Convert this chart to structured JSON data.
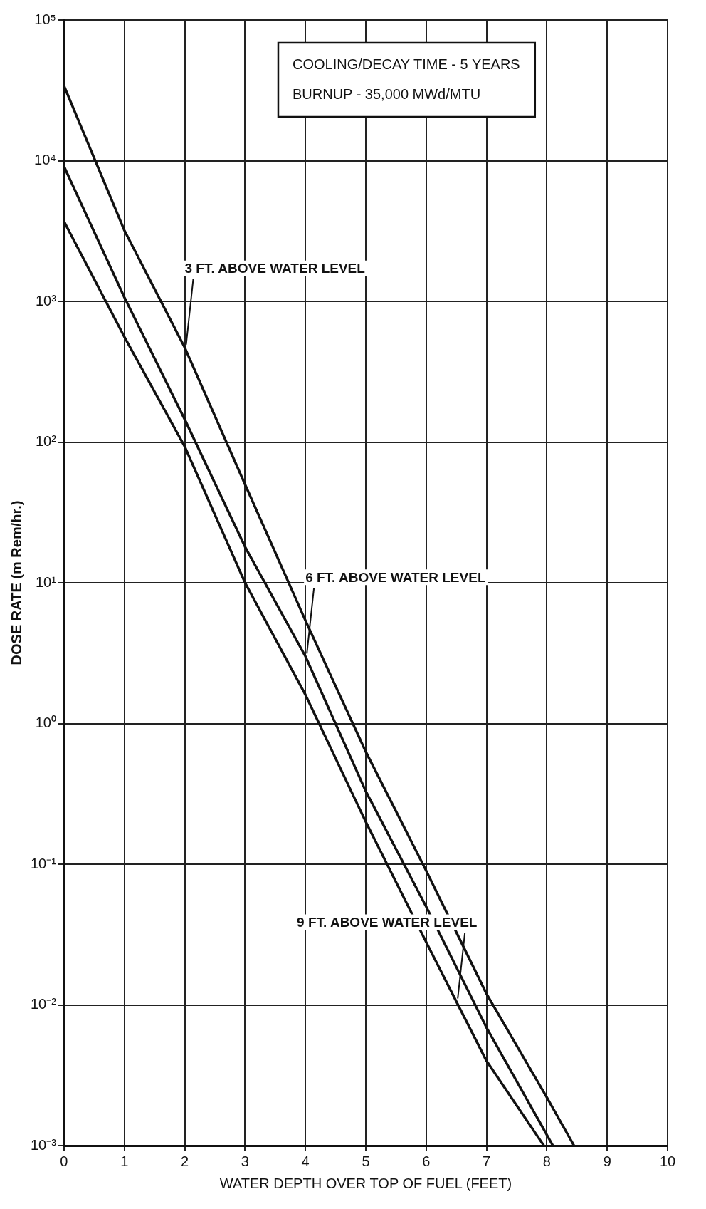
{
  "chart_data": {
    "type": "line",
    "xlabel": "WATER DEPTH OVER TOP OF FUEL (FEET)",
    "ylabel": "DOSE RATE (m Rem/hr.)",
    "log": "y",
    "grid": true,
    "legend": false,
    "marker": "none",
    "line_style": "solid",
    "xlim": [
      0,
      10
    ],
    "xticks": [
      0,
      1,
      2,
      3,
      4,
      5,
      6,
      7,
      8,
      9,
      10
    ],
    "ylim": [
      0.001,
      100000
    ],
    "yticks": [
      {
        "value": 0.001,
        "label": "10⁻³"
      },
      {
        "value": 0.01,
        "label": "10⁻²"
      },
      {
        "value": 0.1,
        "label": "10⁻¹"
      },
      {
        "value": 1,
        "label": "10⁰"
      },
      {
        "value": 10,
        "label": "10¹"
      },
      {
        "value": 100,
        "label": "10²"
      },
      {
        "value": 1000,
        "label": "10³"
      },
      {
        "value": 10000,
        "label": "10⁴"
      },
      {
        "value": 100000,
        "label": "10⁵"
      }
    ],
    "series": [
      {
        "color": "#111111",
        "x": [
          0,
          1,
          2,
          3,
          4,
          5,
          6,
          7,
          8,
          8.45
        ],
        "values": [
          34000,
          3200,
          470,
          50,
          5.4,
          0.63,
          0.09,
          0.012,
          0.0022,
          0.001
        ]
      },
      {
        "color": "#111111",
        "x": [
          0,
          1,
          2,
          3,
          4,
          5,
          6,
          7,
          8.1
        ],
        "values": [
          9100,
          1070,
          145,
          18,
          3,
          0.33,
          0.05,
          0.0069,
          0.001
        ]
      },
      {
        "color": "#111111",
        "x": [
          0,
          1,
          2,
          3,
          4,
          5,
          6,
          7,
          7.95
        ],
        "values": [
          3700,
          560,
          93,
          10,
          1.6,
          0.2,
          0.028,
          0.004,
          0.001
        ]
      }
    ],
    "annotations": [
      "COOLING/DECAY TIME - 5 YEARS",
      "BURNUP - 35,000 MWd/MTU",
      {
        "text": "3 FT. ABOVE WATER LEVEL",
        "x": 2,
        "y": 470
      },
      {
        "text": "6 FT. ABOVE WATER LEVEL",
        "x": 4,
        "y": 3
      },
      {
        "text": "9 FT. ABOVE WATER LEVEL",
        "x": 6.5,
        "y": 0.0106
      }
    ]
  }
}
